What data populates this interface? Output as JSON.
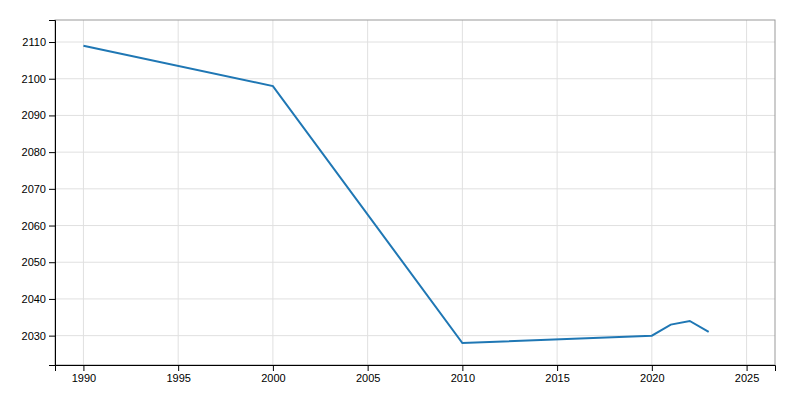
{
  "chart_data": {
    "type": "line",
    "x": [
      1990,
      2000,
      2010,
      2020,
      2021,
      2022,
      2023
    ],
    "values": [
      2109,
      2098,
      2028,
      2030,
      2033,
      2034,
      2031
    ],
    "xlim": [
      1988.5,
      2026.5
    ],
    "ylim": [
      2022,
      2116
    ],
    "xticks": [
      1990,
      1995,
      2000,
      2005,
      2010,
      2015,
      2020,
      2025
    ],
    "yticks": [
      2030,
      2040,
      2050,
      2060,
      2070,
      2080,
      2090,
      2100,
      2110
    ],
    "grid": true
  }
}
